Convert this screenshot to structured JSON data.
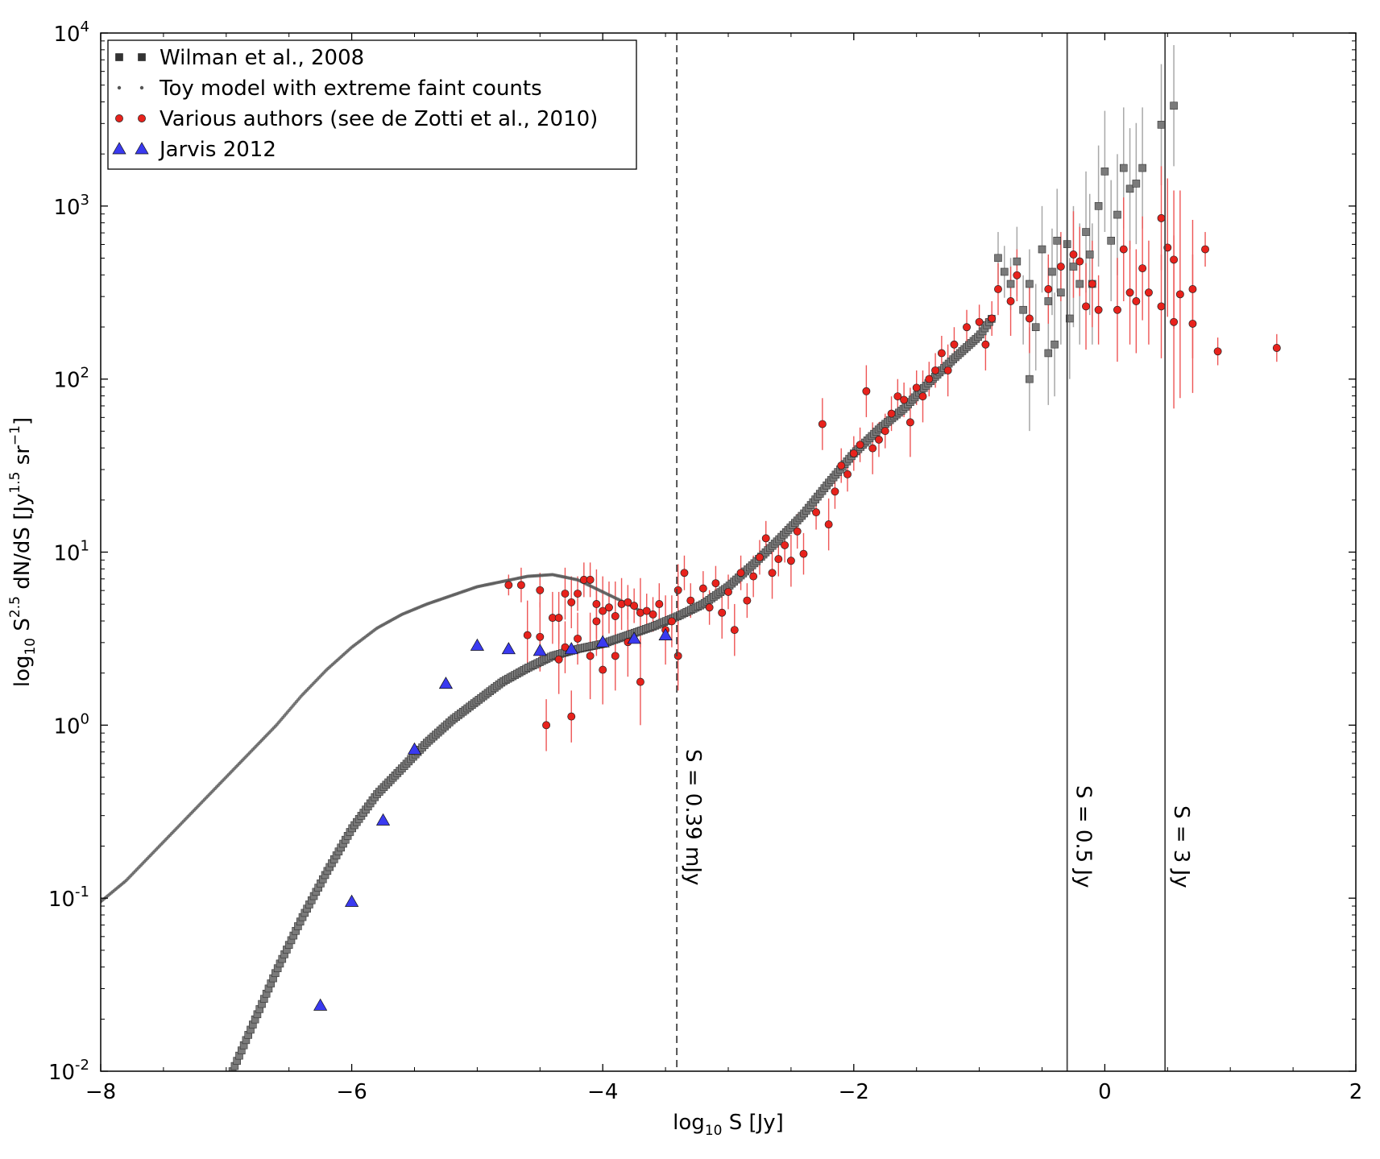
{
  "chart_data": {
    "type": "scatter",
    "title": "",
    "xlabel": {
      "prefix": "log",
      "sub": "10",
      "rest": " S [Jy]"
    },
    "ylabel": {
      "prefix": "log",
      "sub": "10",
      "mid": " S",
      "sup": "2.5",
      "mid2": " dN/dS [Jy",
      "sup2": "1.5",
      "mid3": " sr",
      "sup3": "−1",
      "end": "]"
    },
    "xlim": [
      -8,
      2
    ],
    "ylim_log10": [
      -2,
      4
    ],
    "y_scale": "log",
    "grid": false,
    "legend_position": "top-left",
    "x_ticks": [
      {
        "value": -8,
        "label": "−8"
      },
      {
        "value": -6,
        "label": "−6"
      },
      {
        "value": -4,
        "label": "−4"
      },
      {
        "value": -2,
        "label": "−2"
      },
      {
        "value": 0,
        "label": "0"
      },
      {
        "value": 2,
        "label": "2"
      }
    ],
    "y_ticks": [
      {
        "exp": -2,
        "base": "10",
        "sup": "-2"
      },
      {
        "exp": -1,
        "base": "10",
        "sup": "-1"
      },
      {
        "exp": 0,
        "base": "10",
        "sup": "0"
      },
      {
        "exp": 1,
        "base": "10",
        "sup": "1"
      },
      {
        "exp": 2,
        "base": "10",
        "sup": "2"
      },
      {
        "exp": 3,
        "base": "10",
        "sup": "3"
      },
      {
        "exp": 4,
        "base": "10",
        "sup": "4"
      }
    ],
    "vertical_lines": [
      {
        "x": -3.41,
        "label": "S = 0.39 mJy",
        "style": "dashed"
      },
      {
        "x": -0.3,
        "label": "S = 0.5 Jy",
        "style": "solid"
      },
      {
        "x": 0.48,
        "label": "S = 3 Jy",
        "style": "solid"
      }
    ],
    "series": [
      {
        "name": "Wilman et al., 2008",
        "marker": "square",
        "color": "#7a7a7a",
        "error_color": "#a8a8a8",
        "curve_points": [
          [
            -6.95,
            -2.0
          ],
          [
            -6.8,
            -1.75
          ],
          [
            -6.6,
            -1.42
          ],
          [
            -6.4,
            -1.12
          ],
          [
            -6.2,
            -0.85
          ],
          [
            -6.0,
            -0.6
          ],
          [
            -5.8,
            -0.4
          ],
          [
            -5.6,
            -0.25
          ],
          [
            -5.4,
            -0.1
          ],
          [
            -5.2,
            0.03
          ],
          [
            -5.0,
            0.14
          ],
          [
            -4.8,
            0.25
          ],
          [
            -4.6,
            0.33
          ],
          [
            -4.4,
            0.4
          ],
          [
            -4.2,
            0.44
          ],
          [
            -4.0,
            0.47
          ],
          [
            -3.8,
            0.52
          ],
          [
            -3.6,
            0.57
          ],
          [
            -3.4,
            0.63
          ],
          [
            -3.2,
            0.7
          ],
          [
            -3.0,
            0.8
          ],
          [
            -2.8,
            0.93
          ],
          [
            -2.6,
            1.07
          ],
          [
            -2.4,
            1.22
          ],
          [
            -2.2,
            1.4
          ],
          [
            -2.0,
            1.57
          ],
          [
            -1.8,
            1.71
          ],
          [
            -1.6,
            1.83
          ],
          [
            -1.4,
            1.98
          ],
          [
            -1.2,
            2.12
          ],
          [
            -1.0,
            2.25
          ],
          [
            -0.9,
            2.35
          ]
        ],
        "scatter_points": [
          [
            -0.85,
            2.7,
            0.15
          ],
          [
            -0.8,
            2.62,
            0.15
          ],
          [
            -0.75,
            2.55,
            0.15
          ],
          [
            -0.7,
            2.68,
            0.2
          ],
          [
            -0.65,
            2.4,
            0.2
          ],
          [
            -0.6,
            2.55,
            0.2
          ],
          [
            -0.55,
            2.3,
            0.25
          ],
          [
            -0.5,
            2.75,
            0.25
          ],
          [
            -0.45,
            2.45,
            0.25
          ],
          [
            -0.42,
            2.62,
            0.25
          ],
          [
            -0.4,
            2.2,
            0.3
          ],
          [
            -0.38,
            2.8,
            0.3
          ],
          [
            -0.35,
            2.5,
            0.3
          ],
          [
            -0.3,
            2.78,
            0.3
          ],
          [
            -0.28,
            2.35,
            0.35
          ],
          [
            -0.25,
            2.65,
            0.35
          ],
          [
            -0.2,
            2.55,
            0.35
          ],
          [
            -0.15,
            2.85,
            0.35
          ],
          [
            -0.12,
            2.72,
            0.35
          ],
          [
            -0.1,
            2.55,
            0.35
          ],
          [
            -0.05,
            3.0,
            0.35
          ],
          [
            0.0,
            3.2,
            0.35
          ],
          [
            0.05,
            2.8,
            0.35
          ],
          [
            0.1,
            2.95,
            0.35
          ],
          [
            0.15,
            3.22,
            0.35
          ],
          [
            0.2,
            3.1,
            0.35
          ],
          [
            0.25,
            3.13,
            0.35
          ],
          [
            0.3,
            3.22,
            0.35
          ],
          [
            0.45,
            3.47,
            0.35
          ],
          [
            0.55,
            3.58,
            0.35
          ],
          [
            -0.6,
            2.0,
            0.3
          ],
          [
            -0.45,
            2.15,
            0.3
          ]
        ]
      },
      {
        "name": "Toy model with extreme faint counts",
        "marker": "dot",
        "color": "#555555",
        "curve_points": [
          [
            -8.0,
            -1.02
          ],
          [
            -7.8,
            -0.9
          ],
          [
            -7.6,
            -0.75
          ],
          [
            -7.4,
            -0.6
          ],
          [
            -7.2,
            -0.45
          ],
          [
            -7.0,
            -0.3
          ],
          [
            -6.8,
            -0.15
          ],
          [
            -6.6,
            0.0
          ],
          [
            -6.4,
            0.17
          ],
          [
            -6.2,
            0.32
          ],
          [
            -6.0,
            0.45
          ],
          [
            -5.8,
            0.56
          ],
          [
            -5.6,
            0.64
          ],
          [
            -5.4,
            0.7
          ],
          [
            -5.2,
            0.75
          ],
          [
            -5.0,
            0.8
          ],
          [
            -4.8,
            0.83
          ],
          [
            -4.6,
            0.86
          ],
          [
            -4.4,
            0.87
          ],
          [
            -4.2,
            0.84
          ],
          [
            -4.0,
            0.77
          ],
          [
            -3.8,
            0.7
          ],
          [
            -3.7,
            0.66
          ]
        ]
      },
      {
        "name": "Various authors (see de Zotti et al., 2010)",
        "marker": "circle",
        "color": "#e8221c",
        "error_color": "#ee5555",
        "points": [
          [
            -4.75,
            0.81,
            0.06
          ],
          [
            -4.65,
            0.81,
            0.1
          ],
          [
            -4.5,
            0.78,
            0.1
          ],
          [
            -4.4,
            0.62,
            0.15
          ],
          [
            -4.35,
            0.62,
            0.15
          ],
          [
            -4.3,
            0.76,
            0.15
          ],
          [
            -4.25,
            0.71,
            0.15
          ],
          [
            -4.2,
            0.76,
            0.1
          ],
          [
            -4.15,
            0.84,
            0.1
          ],
          [
            -4.1,
            0.84,
            0.1
          ],
          [
            -4.05,
            0.7,
            0.2
          ],
          [
            -4.0,
            0.66,
            0.2
          ],
          [
            -3.95,
            0.68,
            0.15
          ],
          [
            -3.9,
            0.63,
            0.2
          ],
          [
            -3.85,
            0.7,
            0.15
          ],
          [
            -3.8,
            0.71,
            0.1
          ],
          [
            -3.75,
            0.69,
            0.1
          ],
          [
            -3.7,
            0.65,
            0.2
          ],
          [
            -3.65,
            0.66,
            0.1
          ],
          [
            -3.6,
            0.64,
            0.1
          ],
          [
            -4.5,
            0.51,
            0.2
          ],
          [
            -4.6,
            0.52,
            0.2
          ],
          [
            -4.35,
            0.38,
            0.2
          ],
          [
            -4.3,
            0.45,
            0.15
          ],
          [
            -4.2,
            0.5,
            0.15
          ],
          [
            -4.1,
            0.4,
            0.25
          ],
          [
            -4.0,
            0.32,
            0.2
          ],
          [
            -3.9,
            0.4,
            0.2
          ],
          [
            -3.8,
            0.48,
            0.2
          ],
          [
            -3.7,
            0.25,
            0.25
          ],
          [
            -4.45,
            0.0,
            0.15
          ],
          [
            -4.25,
            0.05,
            0.15
          ],
          [
            -4.05,
            0.6,
            0.2
          ],
          [
            -3.55,
            0.7,
            0.12
          ],
          [
            -3.5,
            0.55,
            0.2
          ],
          [
            -3.45,
            0.6,
            0.15
          ],
          [
            -3.4,
            0.78,
            0.15
          ],
          [
            -3.4,
            0.4,
            0.2
          ],
          [
            -3.35,
            0.88,
            0.1
          ],
          [
            -3.3,
            0.72,
            0.1
          ],
          [
            -3.2,
            0.79,
            0.1
          ],
          [
            -3.15,
            0.68,
            0.1
          ],
          [
            -3.1,
            0.82,
            0.1
          ],
          [
            -3.05,
            0.65,
            0.15
          ],
          [
            -3.0,
            0.77,
            0.1
          ],
          [
            -2.95,
            0.55,
            0.15
          ],
          [
            -2.9,
            0.88,
            0.1
          ],
          [
            -2.85,
            0.72,
            0.1
          ],
          [
            -2.8,
            0.86,
            0.12
          ],
          [
            -2.75,
            0.97,
            0.1
          ],
          [
            -2.7,
            1.08,
            0.1
          ],
          [
            -2.65,
            0.88,
            0.15
          ],
          [
            -2.6,
            0.96,
            0.1
          ],
          [
            -2.55,
            1.04,
            0.1
          ],
          [
            -2.5,
            0.95,
            0.15
          ],
          [
            -2.45,
            1.12,
            0.1
          ],
          [
            -2.4,
            0.99,
            0.12
          ],
          [
            -2.3,
            1.23,
            0.1
          ],
          [
            -2.25,
            1.74,
            0.15
          ],
          [
            -2.2,
            1.16,
            0.15
          ],
          [
            -2.15,
            1.35,
            0.1
          ],
          [
            -2.1,
            1.5,
            0.1
          ],
          [
            -2.05,
            1.45,
            0.1
          ],
          [
            -2.0,
            1.57,
            0.1
          ],
          [
            -1.95,
            1.62,
            0.1
          ],
          [
            -1.9,
            1.93,
            0.15
          ],
          [
            -1.85,
            1.6,
            0.15
          ],
          [
            -1.8,
            1.65,
            0.1
          ],
          [
            -1.75,
            1.7,
            0.1
          ],
          [
            -1.7,
            1.8,
            0.1
          ],
          [
            -1.65,
            1.9,
            0.1
          ],
          [
            -1.6,
            1.88,
            0.1
          ],
          [
            -1.55,
            1.75,
            0.2
          ],
          [
            -1.5,
            1.95,
            0.1
          ],
          [
            -1.45,
            1.9,
            0.15
          ],
          [
            -1.4,
            2.0,
            0.1
          ],
          [
            -1.35,
            2.05,
            0.1
          ],
          [
            -1.3,
            2.15,
            0.1
          ],
          [
            -1.25,
            2.05,
            0.15
          ],
          [
            -1.2,
            2.2,
            0.1
          ],
          [
            -1.1,
            2.3,
            0.1
          ],
          [
            -1.0,
            2.33,
            0.1
          ],
          [
            -0.95,
            2.2,
            0.15
          ],
          [
            -0.9,
            2.35,
            0.1
          ],
          [
            -0.85,
            2.52,
            0.15
          ],
          [
            -0.75,
            2.45,
            0.2
          ],
          [
            -0.7,
            2.6,
            0.15
          ],
          [
            -0.6,
            2.35,
            0.2
          ],
          [
            -0.45,
            2.52,
            0.2
          ],
          [
            -0.35,
            2.65,
            0.2
          ],
          [
            -0.25,
            2.72,
            0.25
          ],
          [
            -0.2,
            2.68,
            0.2
          ],
          [
            -0.15,
            2.42,
            0.25
          ],
          [
            -0.1,
            2.55,
            0.25
          ],
          [
            -0.05,
            2.4,
            0.2
          ],
          [
            0.1,
            2.4,
            0.3
          ],
          [
            0.15,
            2.75,
            0.3
          ],
          [
            0.2,
            2.5,
            0.3
          ],
          [
            0.25,
            2.45,
            0.3
          ],
          [
            0.3,
            2.64,
            0.3
          ],
          [
            0.35,
            2.5,
            0.3
          ],
          [
            0.45,
            2.93,
            0.3
          ],
          [
            0.45,
            2.42,
            0.3
          ],
          [
            0.5,
            2.76,
            0.4
          ],
          [
            0.55,
            2.69,
            0.4
          ],
          [
            0.55,
            2.33,
            0.5
          ],
          [
            0.6,
            2.49,
            0.6
          ],
          [
            0.7,
            2.52,
            0.4
          ],
          [
            0.7,
            2.32,
            0.4
          ],
          [
            0.8,
            2.75,
            0.1
          ],
          [
            0.9,
            2.16,
            0.08
          ],
          [
            1.37,
            2.18,
            0.08
          ]
        ]
      },
      {
        "name": "Jarvis 2012",
        "marker": "triangle",
        "color": "#3a3af0",
        "points": [
          [
            -6.25,
            -1.62
          ],
          [
            -6.0,
            -1.02
          ],
          [
            -5.75,
            -0.55
          ],
          [
            -5.5,
            -0.14
          ],
          [
            -5.25,
            0.24
          ],
          [
            -5.0,
            0.46
          ],
          [
            -4.75,
            0.44
          ],
          [
            -4.5,
            0.43
          ],
          [
            -4.25,
            0.44
          ],
          [
            -4.0,
            0.48
          ],
          [
            -3.75,
            0.5
          ],
          [
            -3.5,
            0.52
          ]
        ]
      }
    ]
  }
}
